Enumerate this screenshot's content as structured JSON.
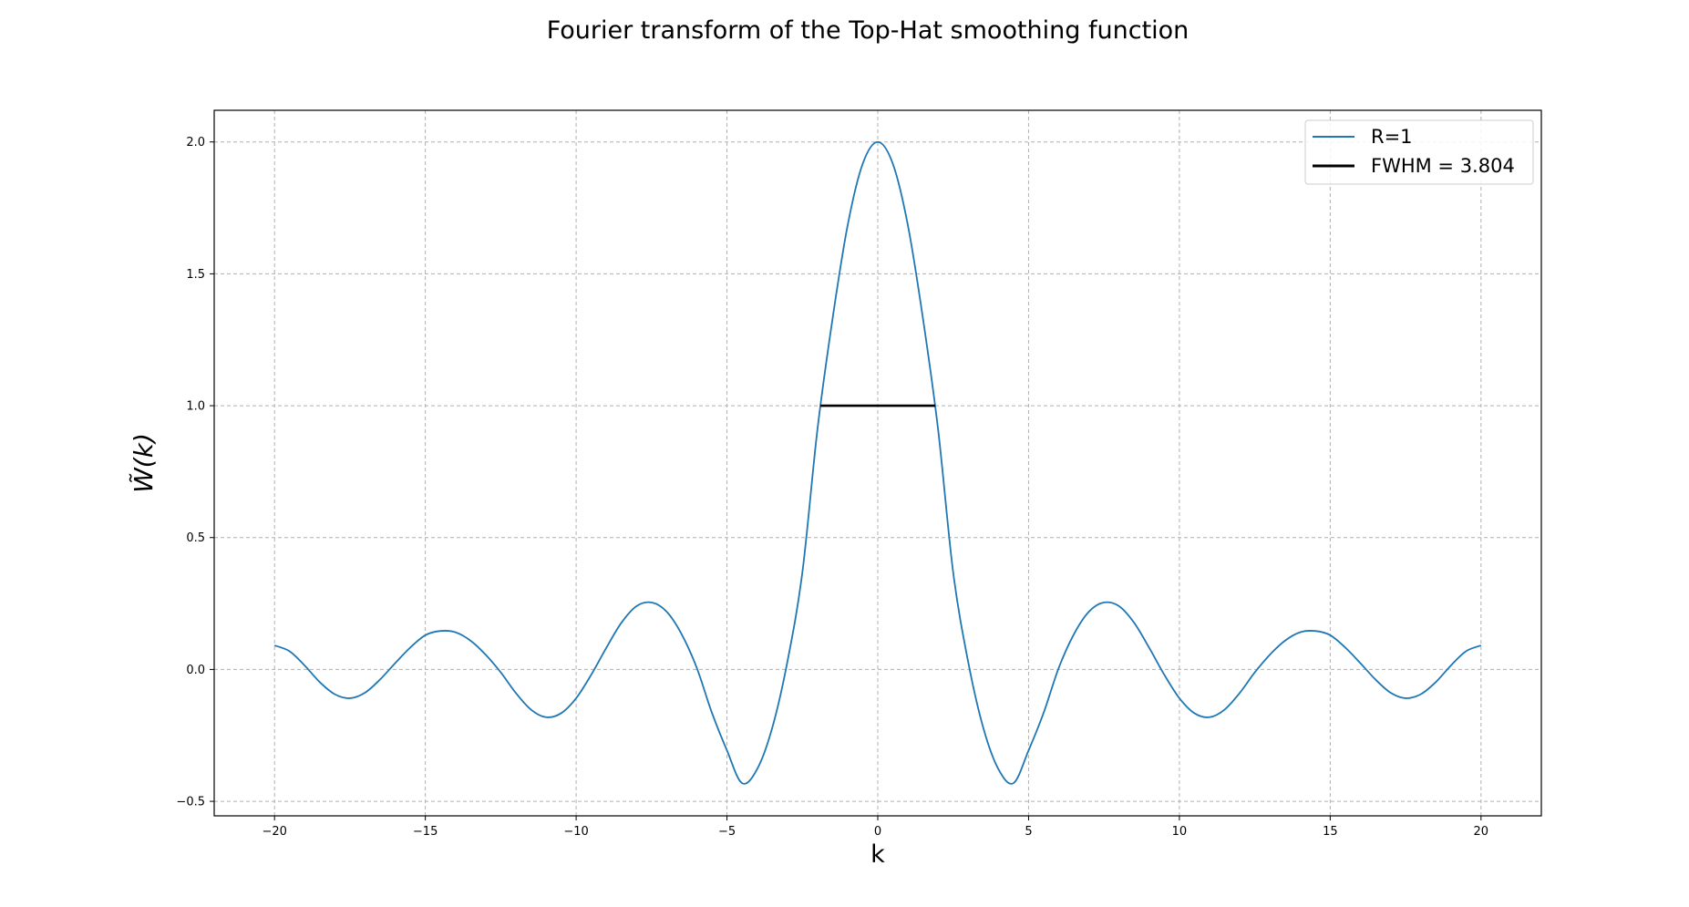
{
  "chart_data": {
    "type": "line",
    "title": "Fourier transform of the Top-Hat smoothing function",
    "xlabel": "k",
    "ylabel": "W̃(k)",
    "xlim": [
      -22,
      22
    ],
    "ylim": [
      -0.555,
      2.12
    ],
    "x_ticks": [
      -20,
      -15,
      -10,
      -5,
      0,
      5,
      10,
      15,
      20
    ],
    "x_tick_labels": [
      "−20",
      "−15",
      "−10",
      "−5",
      "0",
      "5",
      "10",
      "15",
      "20"
    ],
    "y_ticks": [
      -0.5,
      0.0,
      0.5,
      1.0,
      1.5,
      2.0
    ],
    "y_tick_labels": [
      "−0.5",
      "0.0",
      "0.5",
      "1.0",
      "1.5",
      "2.0"
    ],
    "grid": true,
    "legend_position": "top-right",
    "series": [
      {
        "name": "R=1",
        "color": "#1f77b4",
        "x": [
          -20,
          -19.5,
          -19,
          -18.5,
          -18,
          -17.5,
          -17,
          -16.5,
          -16,
          -15.5,
          -15,
          -14.5,
          -14,
          -13.5,
          -13,
          -12.5,
          -12,
          -11.5,
          -11,
          -10.5,
          -10,
          -9.5,
          -9,
          -8.5,
          -8,
          -7.5,
          -7,
          -6.5,
          -6,
          -5.5,
          -5,
          -4.5,
          -4,
          -3.5,
          -3,
          -2.5,
          -2,
          -1.5,
          -1,
          -0.5,
          0,
          0.5,
          1,
          1.5,
          2,
          2.5,
          3,
          3.5,
          4,
          4.5,
          5,
          5.5,
          6,
          6.5,
          7,
          7.5,
          8,
          8.5,
          9,
          9.5,
          10,
          10.5,
          11,
          11.5,
          12,
          12.5,
          13,
          13.5,
          14,
          14.5,
          15,
          15.5,
          16,
          16.5,
          17,
          17.5,
          18,
          18.5,
          19,
          19.5,
          20
        ],
        "y": [
          0.091,
          0.069,
          0.015,
          -0.048,
          -0.094,
          -0.109,
          -0.088,
          -0.038,
          0.024,
          0.083,
          0.13,
          0.146,
          0.141,
          0.109,
          0.056,
          -0.011,
          -0.089,
          -0.152,
          -0.181,
          -0.166,
          -0.109,
          -0.02,
          0.082,
          0.177,
          0.24,
          0.254,
          0.219,
          0.133,
          0.006,
          -0.164,
          -0.307,
          -0.431,
          -0.378,
          -0.222,
          0.027,
          0.368,
          0.91,
          1.329,
          1.683,
          1.917,
          2.0,
          1.917,
          1.683,
          1.329,
          0.91,
          0.368,
          0.027,
          -0.222,
          -0.378,
          -0.431,
          -0.307,
          -0.164,
          0.006,
          0.133,
          0.219,
          0.254,
          0.24,
          0.177,
          0.082,
          -0.02,
          -0.109,
          -0.166,
          -0.181,
          -0.152,
          -0.089,
          -0.011,
          0.056,
          0.109,
          0.141,
          0.146,
          0.13,
          0.083,
          0.024,
          -0.038,
          -0.088,
          -0.109,
          -0.094,
          -0.048,
          0.015,
          0.069,
          0.091
        ]
      },
      {
        "name": "FWHM = 3.804",
        "color": "#000000",
        "x": [
          -1.902,
          1.902
        ],
        "y": [
          1.0,
          1.0
        ]
      }
    ]
  }
}
